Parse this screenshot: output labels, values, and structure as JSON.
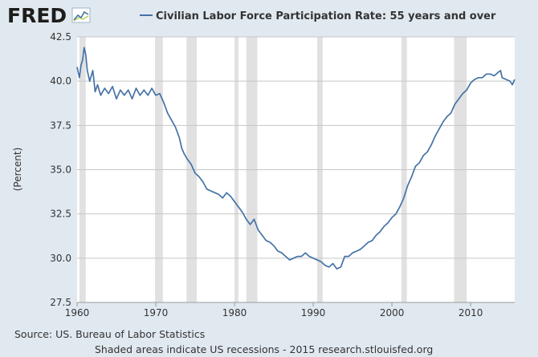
{
  "brand": {
    "logo_text": "FRED"
  },
  "colors": {
    "background": "#e1e9f0",
    "plot_bg": "#ffffff",
    "series": "#4572a7",
    "recession": "#e1e1e1",
    "grid": "#c7c7c7"
  },
  "footer": {
    "source": "Source: US. Bureau of Labor Statistics",
    "note": "Shaded areas indicate US recessions - 2015 research.stlouisfed.org"
  },
  "chart_data": {
    "type": "line",
    "title": "",
    "xlabel": "",
    "ylabel": "(Percent)",
    "xlim": [
      1960,
      2015.6
    ],
    "ylim": [
      27.5,
      42.5
    ],
    "grid": true,
    "legend_position": "top",
    "x_ticks": [
      "1960",
      "1970",
      "1980",
      "1990",
      "2000",
      "2010"
    ],
    "y_ticks": [
      "27.5",
      "30.0",
      "32.5",
      "35.0",
      "37.5",
      "40.0",
      "42.5"
    ],
    "recessions": [
      [
        1960.3,
        1961.1
      ],
      [
        1969.9,
        1970.9
      ],
      [
        1973.9,
        1975.2
      ],
      [
        1980.0,
        1980.5
      ],
      [
        1981.5,
        1982.9
      ],
      [
        1990.5,
        1991.2
      ],
      [
        2001.2,
        2001.9
      ],
      [
        2007.9,
        2009.5
      ]
    ],
    "series": [
      {
        "name": "Civilian Labor Force Participation Rate: 55 years and over",
        "points": [
          [
            1960.0,
            40.8
          ],
          [
            1960.3,
            40.2
          ],
          [
            1960.5,
            40.9
          ],
          [
            1960.7,
            41.2
          ],
          [
            1960.9,
            41.9
          ],
          [
            1961.1,
            41.5
          ],
          [
            1961.3,
            40.6
          ],
          [
            1961.6,
            40.0
          ],
          [
            1962.0,
            40.6
          ],
          [
            1962.3,
            39.4
          ],
          [
            1962.6,
            39.8
          ],
          [
            1963.0,
            39.2
          ],
          [
            1963.5,
            39.6
          ],
          [
            1964.0,
            39.3
          ],
          [
            1964.5,
            39.7
          ],
          [
            1965.0,
            39.0
          ],
          [
            1965.5,
            39.5
          ],
          [
            1966.0,
            39.2
          ],
          [
            1966.5,
            39.5
          ],
          [
            1967.0,
            39.0
          ],
          [
            1967.5,
            39.6
          ],
          [
            1968.0,
            39.2
          ],
          [
            1968.5,
            39.5
          ],
          [
            1969.0,
            39.2
          ],
          [
            1969.5,
            39.6
          ],
          [
            1970.0,
            39.2
          ],
          [
            1970.5,
            39.3
          ],
          [
            1971.0,
            38.8
          ],
          [
            1971.5,
            38.2
          ],
          [
            1972.0,
            37.8
          ],
          [
            1972.5,
            37.4
          ],
          [
            1973.0,
            36.8
          ],
          [
            1973.3,
            36.2
          ],
          [
            1973.6,
            35.9
          ],
          [
            1974.0,
            35.6
          ],
          [
            1974.5,
            35.3
          ],
          [
            1975.0,
            34.8
          ],
          [
            1975.5,
            34.6
          ],
          [
            1976.0,
            34.3
          ],
          [
            1976.5,
            33.9
          ],
          [
            1977.0,
            33.8
          ],
          [
            1977.5,
            33.7
          ],
          [
            1978.0,
            33.6
          ],
          [
            1978.5,
            33.4
          ],
          [
            1979.0,
            33.7
          ],
          [
            1979.5,
            33.5
          ],
          [
            1980.0,
            33.2
          ],
          [
            1980.5,
            32.9
          ],
          [
            1981.0,
            32.6
          ],
          [
            1981.5,
            32.2
          ],
          [
            1982.0,
            31.9
          ],
          [
            1982.5,
            32.2
          ],
          [
            1983.0,
            31.6
          ],
          [
            1983.5,
            31.3
          ],
          [
            1984.0,
            31.0
          ],
          [
            1984.5,
            30.9
          ],
          [
            1985.0,
            30.7
          ],
          [
            1985.5,
            30.4
          ],
          [
            1986.0,
            30.3
          ],
          [
            1986.5,
            30.1
          ],
          [
            1987.0,
            29.9
          ],
          [
            1987.5,
            30.0
          ],
          [
            1988.0,
            30.1
          ],
          [
            1988.5,
            30.1
          ],
          [
            1989.0,
            30.3
          ],
          [
            1989.5,
            30.1
          ],
          [
            1990.0,
            30.0
          ],
          [
            1990.5,
            29.9
          ],
          [
            1991.0,
            29.8
          ],
          [
            1991.5,
            29.6
          ],
          [
            1992.0,
            29.5
          ],
          [
            1992.5,
            29.7
          ],
          [
            1993.0,
            29.4
          ],
          [
            1993.5,
            29.5
          ],
          [
            1994.0,
            30.1
          ],
          [
            1994.5,
            30.1
          ],
          [
            1995.0,
            30.3
          ],
          [
            1995.5,
            30.4
          ],
          [
            1996.0,
            30.5
          ],
          [
            1996.5,
            30.7
          ],
          [
            1997.0,
            30.9
          ],
          [
            1997.5,
            31.0
          ],
          [
            1998.0,
            31.3
          ],
          [
            1998.5,
            31.5
          ],
          [
            1999.0,
            31.8
          ],
          [
            1999.5,
            32.0
          ],
          [
            2000.0,
            32.3
          ],
          [
            2000.5,
            32.5
          ],
          [
            2001.0,
            32.9
          ],
          [
            2001.5,
            33.4
          ],
          [
            2002.0,
            34.1
          ],
          [
            2002.5,
            34.6
          ],
          [
            2003.0,
            35.2
          ],
          [
            2003.5,
            35.4
          ],
          [
            2004.0,
            35.8
          ],
          [
            2004.5,
            36.0
          ],
          [
            2005.0,
            36.4
          ],
          [
            2005.5,
            36.9
          ],
          [
            2006.0,
            37.3
          ],
          [
            2006.5,
            37.7
          ],
          [
            2007.0,
            38.0
          ],
          [
            2007.5,
            38.2
          ],
          [
            2008.0,
            38.7
          ],
          [
            2008.5,
            39.0
          ],
          [
            2009.0,
            39.3
          ],
          [
            2009.5,
            39.5
          ],
          [
            2010.0,
            39.9
          ],
          [
            2010.5,
            40.1
          ],
          [
            2011.0,
            40.2
          ],
          [
            2011.5,
            40.2
          ],
          [
            2012.0,
            40.4
          ],
          [
            2012.5,
            40.4
          ],
          [
            2013.0,
            40.3
          ],
          [
            2013.5,
            40.5
          ],
          [
            2013.8,
            40.6
          ],
          [
            2014.0,
            40.2
          ],
          [
            2014.5,
            40.1
          ],
          [
            2015.0,
            40.0
          ],
          [
            2015.3,
            39.8
          ],
          [
            2015.6,
            40.1
          ]
        ]
      }
    ]
  }
}
